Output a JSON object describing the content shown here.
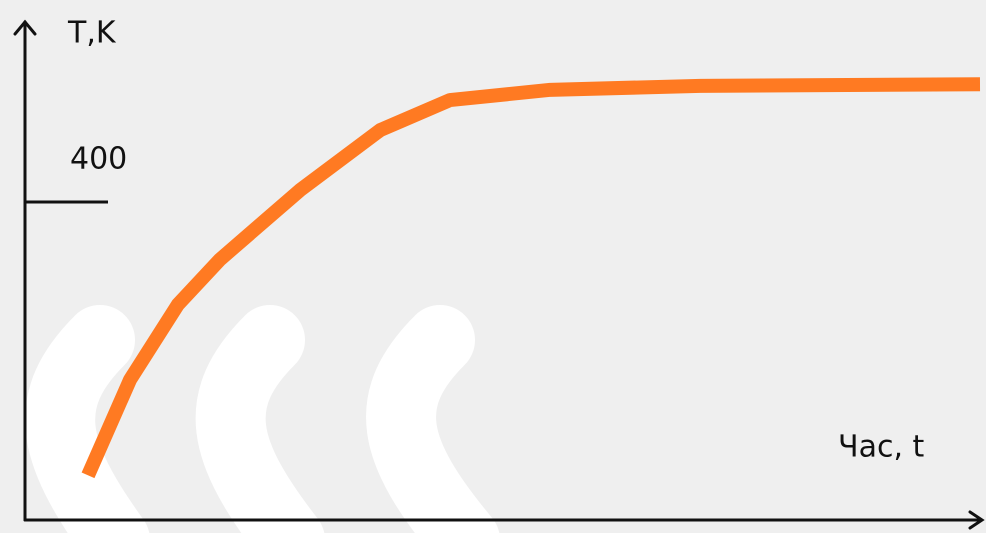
{
  "chart_data": {
    "type": "line",
    "y_label": "T,K",
    "x_label": "Час, t",
    "x": [
      6.6,
      11,
      16,
      20.4,
      28.8,
      37.2,
      44.5,
      55,
      70.7,
      100
    ],
    "values": [
      54,
      175,
      270,
      327,
      415,
      491,
      529,
      542,
      547,
      549
    ],
    "color": "#ff7a22",
    "xlim": [
      0,
      100
    ],
    "ylim": [
      0,
      600
    ],
    "yticks": [
      400
    ]
  }
}
